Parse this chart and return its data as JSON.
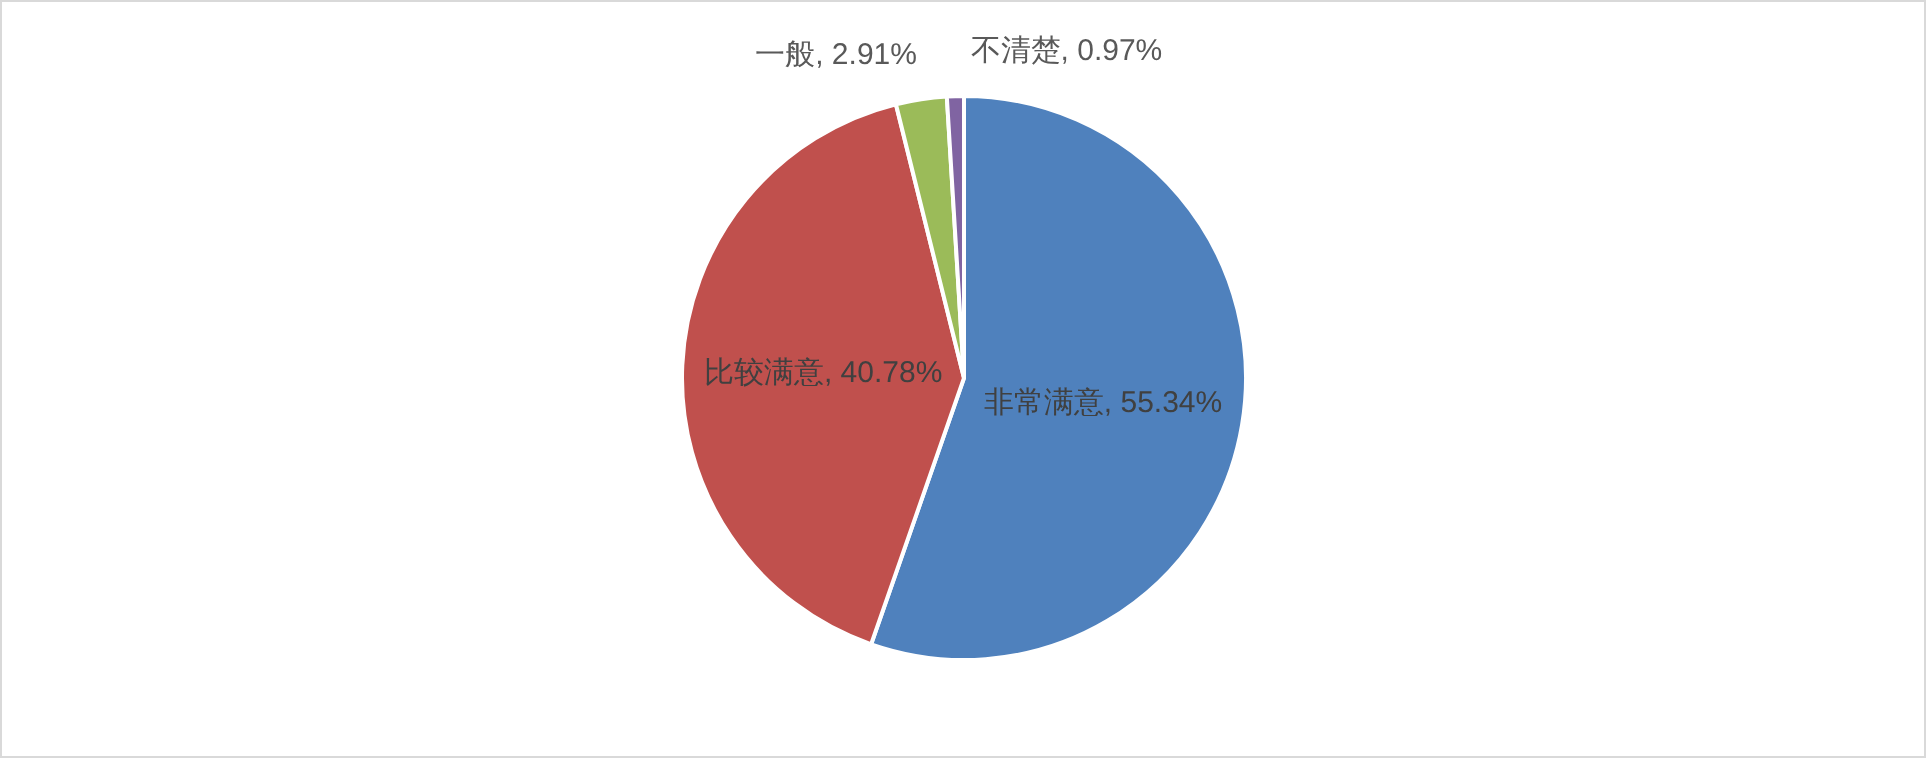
{
  "chart_data": {
    "type": "pie",
    "categories": [
      "非常满意",
      "比较满意",
      "一般",
      "不清楚"
    ],
    "values": [
      55.34,
      40.78,
      2.91,
      0.97
    ],
    "value_labels": [
      "55.34%",
      "40.78%",
      "2.91%",
      "0.97%"
    ],
    "colors": [
      "#4f81bd",
      "#c0504d",
      "#9bbb59",
      "#8064a2"
    ]
  }
}
